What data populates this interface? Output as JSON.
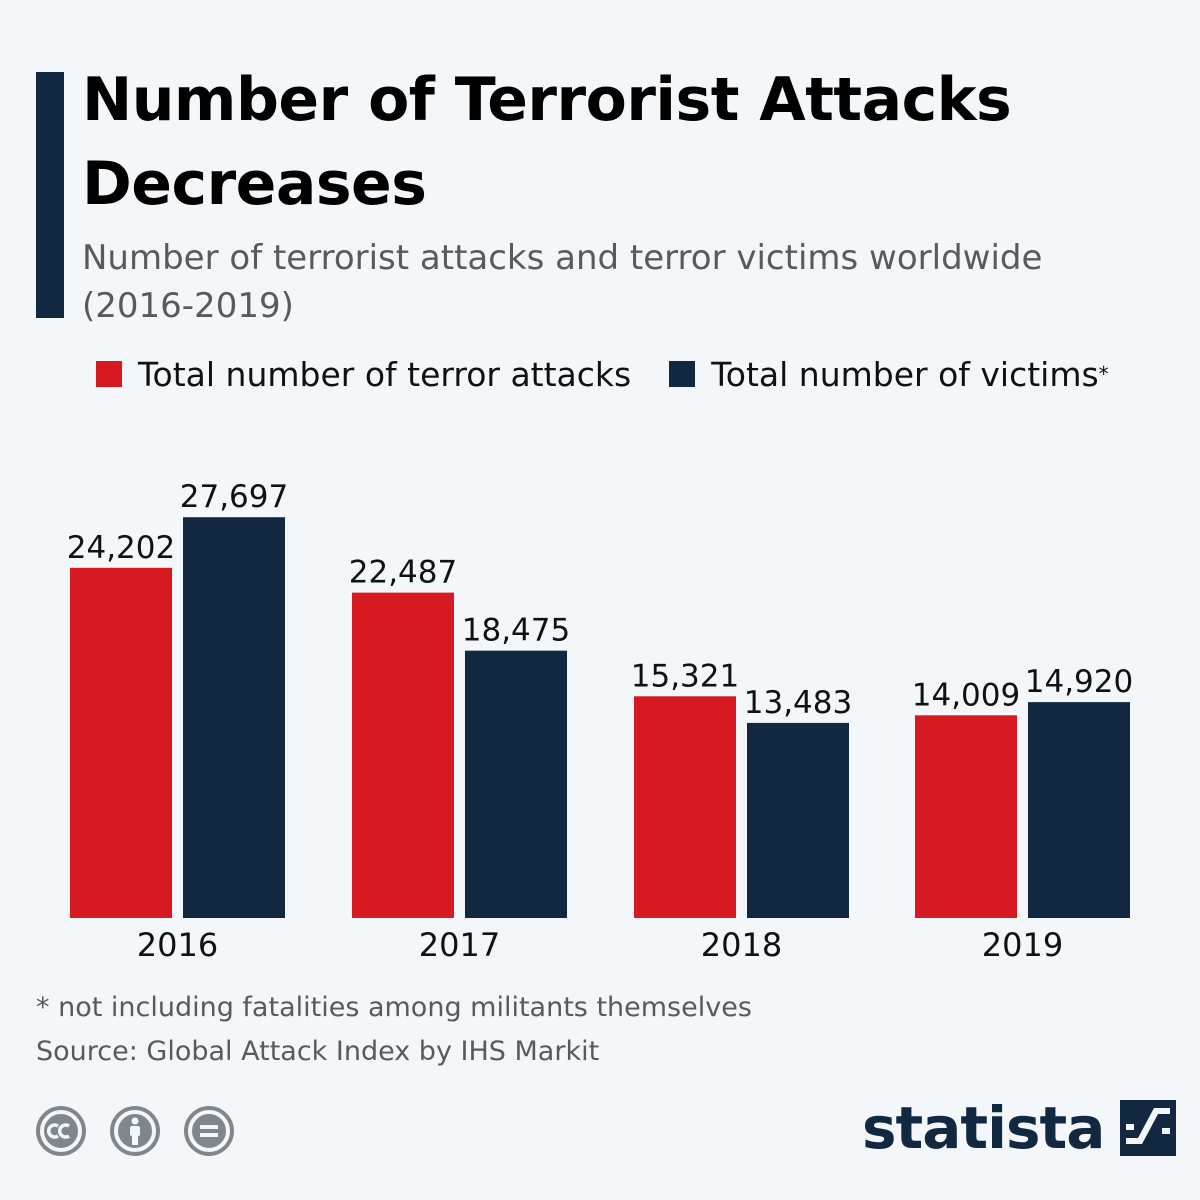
{
  "header": {
    "title": "Number of Terrorist Attacks Decreases",
    "subtitle": "Number of terrorist attacks and terror victims worldwide (2016-2019)"
  },
  "legend": {
    "attacks_label": "Total number of terror attacks",
    "victims_label": "Total number of victims",
    "victims_marker": "*"
  },
  "chart_data": {
    "type": "bar",
    "title": "Number of Terrorist Attacks Decreases",
    "xlabel": "",
    "ylabel": "",
    "ylim": [
      0,
      30000
    ],
    "grid": false,
    "legend_position": "top-left",
    "categories": [
      "2016",
      "2017",
      "2018",
      "2019"
    ],
    "series": [
      {
        "name": "Total number of terror attacks",
        "color": "#d71921",
        "values": [
          24202,
          22487,
          15321,
          14009
        ],
        "labels": [
          "24,202",
          "22,487",
          "15,321",
          "14,009"
        ]
      },
      {
        "name": "Total number of victims*",
        "color": "#122841",
        "values": [
          27697,
          18475,
          13483,
          14920
        ],
        "labels": [
          "27,697",
          "18,475",
          "13,483",
          "14,920"
        ]
      }
    ]
  },
  "footer": {
    "footnote": "* not including fatalities among militants themselves",
    "source": "Source: Global Attack Index by IHS Markit",
    "brand": "statista",
    "license_icons": [
      "cc-icon",
      "attribution-icon",
      "no-derivatives-icon"
    ]
  },
  "colors": {
    "attacks": "#d71921",
    "victims": "#122841",
    "background": "#f4f7fa"
  }
}
